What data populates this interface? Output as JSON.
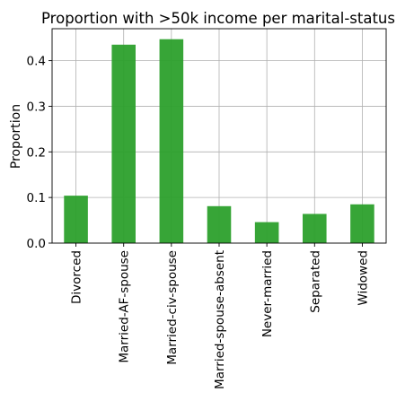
{
  "chart_data": {
    "type": "bar",
    "title": "Proportion with >50k income per marital-status",
    "xlabel": "",
    "ylabel": "Proportion",
    "categories": [
      "Divorced",
      "Married-AF-spouse",
      "Married-civ-spouse",
      "Married-spouse-absent",
      "Never-married",
      "Separated",
      "Widowed"
    ],
    "values": [
      0.104,
      0.435,
      0.447,
      0.081,
      0.046,
      0.064,
      0.085
    ],
    "ylim": [
      0,
      0.47
    ],
    "yticks": [
      0.0,
      0.1,
      0.2,
      0.3,
      0.4
    ],
    "ytick_labels": [
      "0.0",
      "0.1",
      "0.2",
      "0.3",
      "0.4"
    ],
    "bar_color": "#2ca02c",
    "grid": true
  }
}
